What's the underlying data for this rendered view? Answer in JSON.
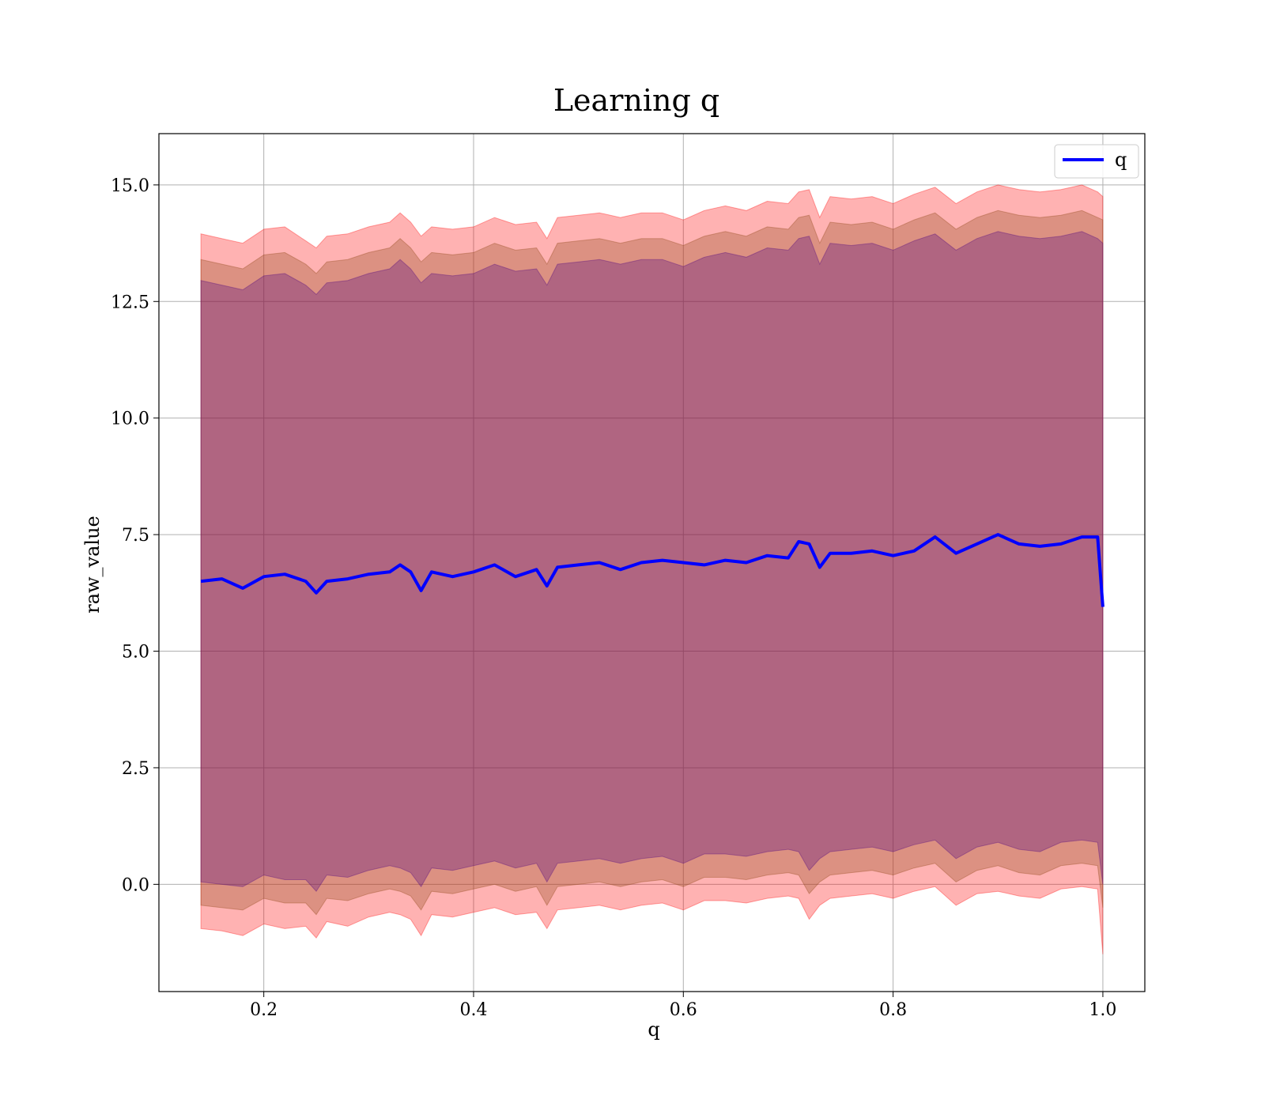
{
  "chart_data": {
    "type": "line",
    "title": "Learning q",
    "xlabel": "q",
    "ylabel": "raw_value",
    "xlim": [
      0.1,
      1.04
    ],
    "ylim": [
      -2.3,
      16.1
    ],
    "xticks": [
      0.2,
      0.4,
      0.6,
      0.8,
      1.0
    ],
    "xtick_labels": [
      "0.2",
      "0.4",
      "0.6",
      "0.8",
      "1.0"
    ],
    "yticks": [
      0.0,
      2.5,
      5.0,
      7.5,
      10.0,
      12.5,
      15.0
    ],
    "ytick_labels": [
      "0.0",
      "2.5",
      "5.0",
      "7.5",
      "10.0",
      "12.5",
      "15.0"
    ],
    "grid": true,
    "legend_position": "top-right",
    "legend": [
      "q"
    ],
    "colors": {
      "line": "#0000ff",
      "band_outer": "#ff0000",
      "band_middle": "#8b4513",
      "band_inner": "#4b0082",
      "grid": "#b0b0b0",
      "axes": "#000000"
    },
    "series": [
      {
        "name": "q",
        "x": [
          0.14,
          0.16,
          0.18,
          0.2,
          0.22,
          0.24,
          0.25,
          0.26,
          0.28,
          0.3,
          0.32,
          0.33,
          0.34,
          0.35,
          0.36,
          0.38,
          0.4,
          0.42,
          0.44,
          0.46,
          0.47,
          0.48,
          0.5,
          0.52,
          0.54,
          0.56,
          0.58,
          0.6,
          0.62,
          0.64,
          0.66,
          0.68,
          0.7,
          0.71,
          0.72,
          0.73,
          0.74,
          0.76,
          0.78,
          0.8,
          0.82,
          0.84,
          0.86,
          0.88,
          0.9,
          0.92,
          0.94,
          0.96,
          0.98,
          0.995,
          1.0
        ],
        "y": [
          6.5,
          6.55,
          6.35,
          6.6,
          6.65,
          6.5,
          6.25,
          6.5,
          6.55,
          6.65,
          6.7,
          6.85,
          6.7,
          6.3,
          6.7,
          6.6,
          6.7,
          6.85,
          6.6,
          6.75,
          6.4,
          6.8,
          6.85,
          6.9,
          6.75,
          6.9,
          6.95,
          6.9,
          6.85,
          6.95,
          6.9,
          7.05,
          7.0,
          7.35,
          7.3,
          6.8,
          7.1,
          7.1,
          7.15,
          7.05,
          7.15,
          7.45,
          7.1,
          7.3,
          7.5,
          7.3,
          7.25,
          7.3,
          7.45,
          7.45,
          5.95
        ],
        "bands": [
          {
            "lower": [
              -0.95,
              -1.0,
              -1.1,
              -0.85,
              -0.95,
              -0.9,
              -1.15,
              -0.8,
              -0.9,
              -0.7,
              -0.6,
              -0.65,
              -0.75,
              -1.1,
              -0.65,
              -0.7,
              -0.6,
              -0.5,
              -0.65,
              -0.6,
              -0.95,
              -0.55,
              -0.5,
              -0.45,
              -0.55,
              -0.45,
              -0.4,
              -0.55,
              -0.35,
              -0.35,
              -0.4,
              -0.3,
              -0.25,
              -0.3,
              -0.75,
              -0.45,
              -0.3,
              -0.25,
              -0.2,
              -0.3,
              -0.15,
              -0.05,
              -0.45,
              -0.2,
              -0.15,
              -0.25,
              -0.3,
              -0.1,
              -0.05,
              -0.1,
              -1.5
            ],
            "upper": [
              13.95,
              13.85,
              13.75,
              14.05,
              14.1,
              13.8,
              13.65,
              13.9,
              13.95,
              14.1,
              14.2,
              14.4,
              14.2,
              13.9,
              14.1,
              14.05,
              14.1,
              14.3,
              14.15,
              14.2,
              13.85,
              14.3,
              14.35,
              14.4,
              14.3,
              14.4,
              14.4,
              14.25,
              14.45,
              14.55,
              14.45,
              14.65,
              14.6,
              14.85,
              14.9,
              14.3,
              14.75,
              14.7,
              14.75,
              14.6,
              14.8,
              14.95,
              14.6,
              14.85,
              15.0,
              14.9,
              14.85,
              14.9,
              15.0,
              14.85,
              14.75
            ]
          },
          {
            "lower": [
              -0.45,
              -0.5,
              -0.55,
              -0.3,
              -0.4,
              -0.4,
              -0.65,
              -0.3,
              -0.35,
              -0.2,
              -0.1,
              -0.15,
              -0.25,
              -0.55,
              -0.15,
              -0.2,
              -0.1,
              0.0,
              -0.15,
              -0.05,
              -0.45,
              -0.05,
              0.0,
              0.05,
              -0.05,
              0.05,
              0.1,
              -0.05,
              0.15,
              0.15,
              0.1,
              0.2,
              0.25,
              0.2,
              -0.2,
              0.05,
              0.2,
              0.25,
              0.3,
              0.2,
              0.35,
              0.45,
              0.05,
              0.3,
              0.4,
              0.25,
              0.2,
              0.4,
              0.45,
              0.4,
              -0.5
            ],
            "upper": [
              13.4,
              13.3,
              13.2,
              13.5,
              13.55,
              13.3,
              13.1,
              13.35,
              13.4,
              13.55,
              13.65,
              13.85,
              13.65,
              13.35,
              13.55,
              13.5,
              13.55,
              13.75,
              13.6,
              13.65,
              13.3,
              13.75,
              13.8,
              13.85,
              13.75,
              13.85,
              13.85,
              13.7,
              13.9,
              14.0,
              13.9,
              14.1,
              14.05,
              14.3,
              14.35,
              13.75,
              14.2,
              14.15,
              14.2,
              14.05,
              14.25,
              14.4,
              14.05,
              14.3,
              14.45,
              14.35,
              14.3,
              14.35,
              14.45,
              14.3,
              14.25
            ]
          },
          {
            "lower": [
              0.05,
              0.0,
              -0.05,
              0.2,
              0.1,
              0.1,
              -0.15,
              0.2,
              0.15,
              0.3,
              0.4,
              0.35,
              0.25,
              -0.05,
              0.35,
              0.3,
              0.4,
              0.5,
              0.35,
              0.45,
              0.05,
              0.45,
              0.5,
              0.55,
              0.45,
              0.55,
              0.6,
              0.45,
              0.65,
              0.65,
              0.6,
              0.7,
              0.75,
              0.7,
              0.3,
              0.55,
              0.7,
              0.75,
              0.8,
              0.7,
              0.85,
              0.95,
              0.55,
              0.8,
              0.9,
              0.75,
              0.7,
              0.9,
              0.95,
              0.9,
              0.0
            ],
            "upper": [
              12.95,
              12.85,
              12.75,
              13.05,
              13.1,
              12.85,
              12.65,
              12.9,
              12.95,
              13.1,
              13.2,
              13.4,
              13.2,
              12.9,
              13.1,
              13.05,
              13.1,
              13.3,
              13.15,
              13.2,
              12.85,
              13.3,
              13.35,
              13.4,
              13.3,
              13.4,
              13.4,
              13.25,
              13.45,
              13.55,
              13.45,
              13.65,
              13.6,
              13.85,
              13.9,
              13.3,
              13.75,
              13.7,
              13.75,
              13.6,
              13.8,
              13.95,
              13.6,
              13.85,
              14.0,
              13.9,
              13.85,
              13.9,
              14.0,
              13.85,
              13.75
            ]
          }
        ]
      }
    ]
  }
}
